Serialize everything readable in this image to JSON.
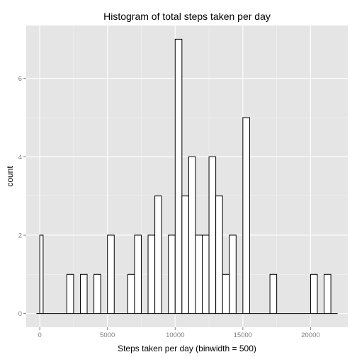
{
  "chart_data": {
    "type": "bar",
    "title": "Histogram of total steps taken per day",
    "xlabel": "Steps taken per day (binwidth = 500)",
    "ylabel": "count",
    "binwidth": 500,
    "xlim": [
      -1000,
      22750
    ],
    "ylim": [
      -0.35,
      7.35
    ],
    "x_ticks": [
      0,
      5000,
      10000,
      15000,
      20000
    ],
    "x_tick_labels": [
      "0",
      "5000",
      "10000",
      "15000",
      "20000"
    ],
    "y_ticks": [
      0,
      2,
      4,
      6
    ],
    "y_tick_labels": [
      "0",
      "2",
      "4",
      "6"
    ],
    "grid": true,
    "bins": [
      {
        "start": -250,
        "end": 0,
        "count": 0
      },
      {
        "start": 0,
        "end": 250,
        "count": 2
      },
      {
        "start": 250,
        "end": 2000,
        "count": 0
      },
      {
        "start": 2000,
        "end": 2500,
        "count": 1
      },
      {
        "start": 2500,
        "end": 3000,
        "count": 0
      },
      {
        "start": 3000,
        "end": 3500,
        "count": 1
      },
      {
        "start": 3500,
        "end": 4000,
        "count": 0
      },
      {
        "start": 4000,
        "end": 4500,
        "count": 1
      },
      {
        "start": 4500,
        "end": 5000,
        "count": 0
      },
      {
        "start": 5000,
        "end": 5500,
        "count": 2
      },
      {
        "start": 5500,
        "end": 6500,
        "count": 0
      },
      {
        "start": 6500,
        "end": 7000,
        "count": 1
      },
      {
        "start": 7000,
        "end": 7500,
        "count": 2
      },
      {
        "start": 7500,
        "end": 8000,
        "count": 0
      },
      {
        "start": 8000,
        "end": 8500,
        "count": 2
      },
      {
        "start": 8500,
        "end": 9000,
        "count": 3
      },
      {
        "start": 9000,
        "end": 9500,
        "count": 0
      },
      {
        "start": 9500,
        "end": 10000,
        "count": 2
      },
      {
        "start": 10000,
        "end": 10500,
        "count": 7
      },
      {
        "start": 10500,
        "end": 11000,
        "count": 3
      },
      {
        "start": 11000,
        "end": 11500,
        "count": 4
      },
      {
        "start": 11500,
        "end": 12000,
        "count": 2
      },
      {
        "start": 12000,
        "end": 12500,
        "count": 2
      },
      {
        "start": 12500,
        "end": 13000,
        "count": 4
      },
      {
        "start": 13000,
        "end": 13500,
        "count": 3
      },
      {
        "start": 13500,
        "end": 14000,
        "count": 1
      },
      {
        "start": 14000,
        "end": 14500,
        "count": 2
      },
      {
        "start": 14500,
        "end": 15000,
        "count": 0
      },
      {
        "start": 15000,
        "end": 15500,
        "count": 5
      },
      {
        "start": 15500,
        "end": 17000,
        "count": 0
      },
      {
        "start": 17000,
        "end": 17500,
        "count": 1
      },
      {
        "start": 17500,
        "end": 20000,
        "count": 0
      },
      {
        "start": 20000,
        "end": 20500,
        "count": 1
      },
      {
        "start": 20500,
        "end": 21000,
        "count": 0
      },
      {
        "start": 21000,
        "end": 21500,
        "count": 1
      },
      {
        "start": 21500,
        "end": 22000,
        "count": 0
      }
    ]
  },
  "colors": {
    "panel_background": "#e5e5e5",
    "grid_major": "#ffffff",
    "grid_minor": "#f2f2f2",
    "bar_fill": "#ffffff",
    "bar_outline": "#000000",
    "tick_text": "#7f7f7f"
  }
}
